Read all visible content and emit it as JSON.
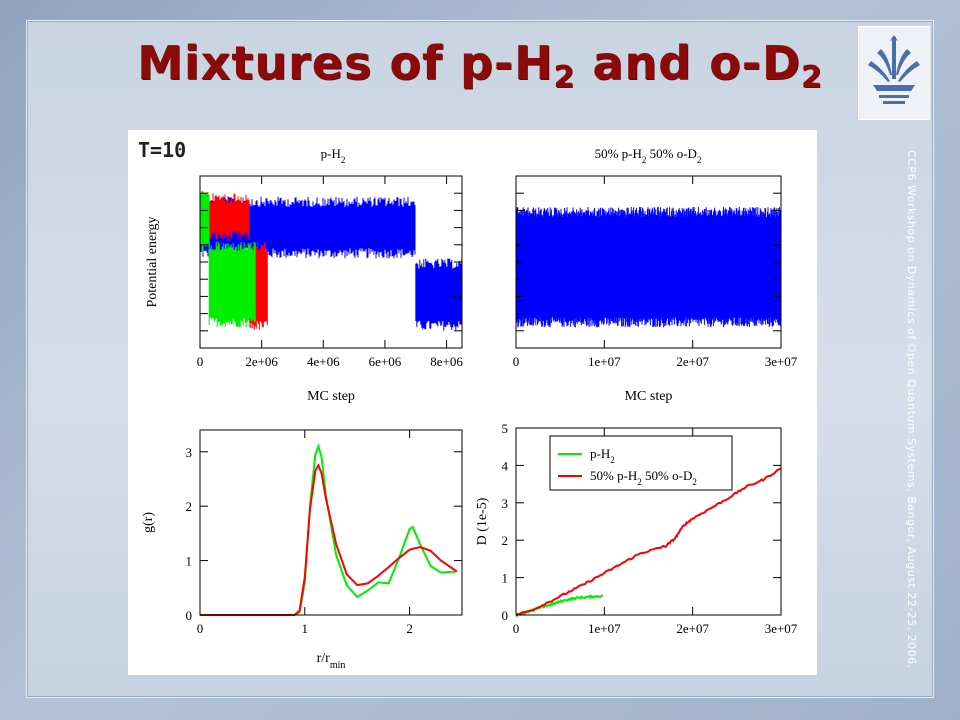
{
  "slide": {
    "title_main": "Mixtures of p-H",
    "title_sub1": "2",
    "title_mid": " and o-D",
    "title_sub2": "2",
    "side_text": "CCP6 Workshop on Dynamics of Open Quantum Systems, Bangor, August 22-25, 2006."
  },
  "figure": {
    "temperature_label": "T=10"
  },
  "colors": {
    "green": "#00ee00",
    "red": "#ff0000",
    "blue": "#0000ff",
    "title": "#8b0b0b"
  },
  "chart_data": [
    {
      "type": "line",
      "title": "p-H2",
      "title_base": "p-H",
      "title_sub": "2",
      "xlabel": "MC step",
      "ylabel": "Potential energy",
      "xlim": [
        0,
        8500000
      ],
      "xticks": [
        0,
        2000000,
        4000000,
        6000000,
        8000000
      ],
      "xtick_labels": [
        "0",
        "2e+06",
        "4e+06",
        "6e+06",
        "8e+06"
      ],
      "grid": false,
      "series": [
        {
          "color": "blue",
          "segments": [
            {
              "x0": 0,
              "x1": 7000000,
              "y_lo": 0.52,
              "y_hi": 0.88
            },
            {
              "x0": 7000000,
              "x1": 8500000,
              "y_lo": 0.1,
              "y_hi": 0.52
            }
          ]
        },
        {
          "color": "red",
          "segments": [
            {
              "x0": 0,
              "x1": 1600000,
              "y_lo": 0.62,
              "y_hi": 0.9
            },
            {
              "x0": 1600000,
              "x1": 2200000,
              "y_lo": 0.1,
              "y_hi": 0.62
            }
          ]
        },
        {
          "color": "green",
          "segments": [
            {
              "x0": 0,
              "x1": 300000,
              "y_lo": 0.55,
              "y_hi": 0.92
            },
            {
              "x0": 300000,
              "x1": 1800000,
              "y_lo": 0.12,
              "y_hi": 0.62
            }
          ]
        }
      ]
    },
    {
      "type": "line",
      "title": "50% p-H2 50% o-D2",
      "title_parts": [
        "50% p-H",
        "2",
        " 50% o-D",
        "2"
      ],
      "xlabel": "MC step",
      "xlim": [
        0,
        30000000
      ],
      "xticks": [
        0,
        10000000,
        20000000,
        30000000
      ],
      "xtick_labels": [
        "0",
        "1e+07",
        "2e+07",
        "3e+07"
      ],
      "grid": false,
      "series": [
        {
          "color": "blue",
          "segments": [
            {
              "x0": 0,
              "x1": 30000000,
              "y_lo": 0.12,
              "y_hi": 0.82
            }
          ]
        }
      ]
    },
    {
      "type": "line",
      "xlabel": "r/r",
      "xlabel_sub": "min",
      "ylabel": "g(r)",
      "xlim": [
        0,
        2.5
      ],
      "ylim": [
        0,
        3.4
      ],
      "xticks": [
        0,
        1,
        2
      ],
      "yticks": [
        0,
        1,
        2,
        3
      ],
      "grid": false,
      "series": [
        {
          "color": "green",
          "x": [
            0,
            0.9,
            0.95,
            1.0,
            1.05,
            1.1,
            1.13,
            1.16,
            1.2,
            1.3,
            1.4,
            1.5,
            1.6,
            1.7,
            1.8,
            1.9,
            2.0,
            2.03,
            2.1,
            2.2,
            2.3,
            2.45
          ],
          "y": [
            0,
            0,
            0.05,
            0.6,
            2.0,
            2.95,
            3.1,
            2.9,
            2.2,
            1.1,
            0.55,
            0.33,
            0.45,
            0.6,
            0.58,
            1.05,
            1.58,
            1.62,
            1.3,
            0.9,
            0.78,
            0.8
          ]
        },
        {
          "color": "red",
          "x": [
            0,
            0.9,
            0.95,
            1.0,
            1.05,
            1.1,
            1.13,
            1.16,
            1.2,
            1.3,
            1.4,
            1.5,
            1.6,
            1.7,
            1.8,
            1.9,
            2.0,
            2.1,
            2.2,
            2.3,
            2.45
          ],
          "y": [
            0,
            0,
            0.08,
            0.7,
            1.95,
            2.65,
            2.75,
            2.6,
            2.15,
            1.3,
            0.75,
            0.55,
            0.58,
            0.72,
            0.88,
            1.05,
            1.2,
            1.25,
            1.18,
            1.0,
            0.8
          ]
        }
      ]
    },
    {
      "type": "line",
      "ylabel": "D (1e-5)",
      "xlim": [
        0,
        30000000
      ],
      "ylim": [
        0,
        5
      ],
      "xticks": [
        0,
        10000000,
        20000000,
        30000000
      ],
      "xtick_labels": [
        "0",
        "1e+07",
        "2e+07",
        "3e+07"
      ],
      "yticks": [
        0,
        1,
        2,
        3,
        4,
        5
      ],
      "legend_position": "top-right",
      "grid": false,
      "series": [
        {
          "name": "p-H2",
          "name_parts": [
            "p-H",
            "2"
          ],
          "color": "green",
          "x": [
            0,
            1000000,
            2000000,
            3000000,
            4000000,
            5000000,
            6000000,
            7000000,
            8000000,
            9000000,
            9800000
          ],
          "y": [
            0,
            0.06,
            0.14,
            0.22,
            0.28,
            0.36,
            0.42,
            0.46,
            0.48,
            0.5,
            0.5
          ]
        },
        {
          "name": "50% p-H2 50% o-D2",
          "name_parts": [
            "50% p-H",
            "2",
            " 50% o-D",
            "2"
          ],
          "color": "red",
          "x": [
            0,
            2000000,
            4000000,
            6000000,
            8000000,
            10000000,
            12000000,
            14000000,
            16000000,
            17000000,
            18000000,
            19000000,
            20000000,
            22000000,
            24000000,
            26000000,
            28000000,
            30000000
          ],
          "y": [
            0,
            0.15,
            0.38,
            0.62,
            0.86,
            1.12,
            1.38,
            1.64,
            1.78,
            1.85,
            2.05,
            2.4,
            2.58,
            2.85,
            3.12,
            3.42,
            3.62,
            3.92
          ]
        }
      ]
    }
  ]
}
